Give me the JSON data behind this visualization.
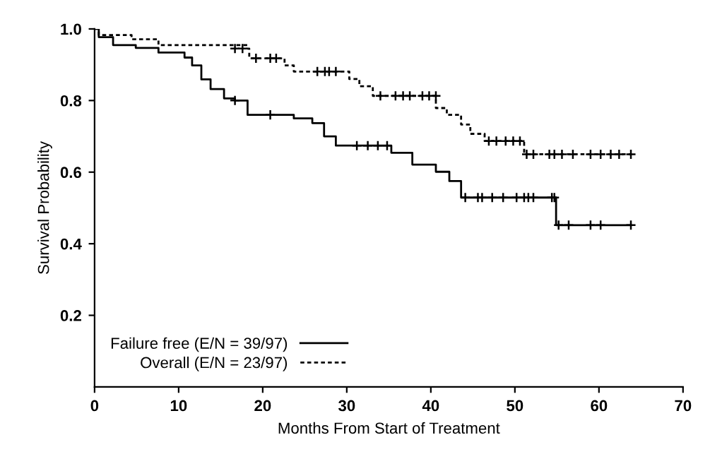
{
  "chart_data": {
    "type": "step",
    "xlabel": "Months From Start of Treatment",
    "ylabel": "Survival Probability",
    "xlim": [
      0,
      70
    ],
    "xticks": [
      0,
      10,
      20,
      30,
      40,
      50,
      60,
      70
    ],
    "ylim": [
      0,
      1.0
    ],
    "yticks": [
      0.2,
      0.4,
      0.6,
      0.8,
      {
        "value": 1,
        "label": "1.0"
      }
    ],
    "grid": false,
    "legend": "bottom left",
    "marker": "none",
    "series": [
      {
        "name": "Failure free (E/N = 39/97)",
        "color": "#000000",
        "line_style": "solid",
        "x": [
          0,
          0.5,
          2.2,
          4.9,
          7.6,
          10.7,
          11.6,
          12.7,
          13.8,
          15.4,
          16.7,
          18.2,
          23.7,
          25.9,
          27.3,
          28.7,
          35.3,
          37.8,
          40.6,
          42.2,
          43.6,
          54.9,
          63.8
        ],
        "values": [
          1.0,
          0.977,
          0.955,
          0.947,
          0.934,
          0.92,
          0.898,
          0.859,
          0.832,
          0.806,
          0.8,
          0.76,
          0.75,
          0.737,
          0.7,
          0.674,
          0.654,
          0.621,
          0.601,
          0.575,
          0.529,
          0.452,
          0.452
        ]
      },
      {
        "name": "Overall (E/N = 23/97)",
        "color": "#000000",
        "line_style": "dashed",
        "x": [
          0,
          0.5,
          4.4,
          7.6,
          18.2,
          18.4,
          22.6,
          23.7,
          30.3,
          31.5,
          33.1,
          40.6,
          41.9,
          43.6,
          44.7,
          46.4,
          51.1,
          63.8
        ],
        "values": [
          1.0,
          0.983,
          0.971,
          0.955,
          0.945,
          0.918,
          0.898,
          0.881,
          0.86,
          0.84,
          0.813,
          0.779,
          0.76,
          0.733,
          0.707,
          0.687,
          0.65,
          0.65
        ]
      },
      {
        "type": "scatter",
        "marker": "cross",
        "color": "#000000",
        "x": [
          16.7,
          20.9,
          31.2,
          32.5,
          33.7,
          34.8,
          44.1,
          45.6,
          46.1,
          47.3,
          48.6,
          50.2,
          51.1,
          51.6,
          52.2,
          54.4,
          54.7,
          55.2,
          56.4,
          59.0,
          60.2,
          63.8
        ],
        "values": [
          0.8,
          0.76,
          0.674,
          0.674,
          0.674,
          0.674,
          0.529,
          0.529,
          0.529,
          0.529,
          0.529,
          0.529,
          0.529,
          0.529,
          0.529,
          0.529,
          0.529,
          0.452,
          0.452,
          0.452,
          0.452,
          0.452
        ]
      },
      {
        "type": "scatter",
        "marker": "cross",
        "color": "#000000",
        "x": [
          16.7,
          17.6,
          19.2,
          20.9,
          21.6,
          26.5,
          27.4,
          27.9,
          28.7,
          34.0,
          35.8,
          36.7,
          37.5,
          39.0,
          39.8,
          40.6,
          46.9,
          47.8,
          48.9,
          49.8,
          50.6,
          51.4,
          52.2,
          54.1,
          54.7,
          55.6,
          56.9,
          59.0,
          60.2,
          61.4,
          62.4,
          63.8
        ],
        "values": [
          0.945,
          0.945,
          0.918,
          0.918,
          0.918,
          0.881,
          0.881,
          0.881,
          0.881,
          0.813,
          0.813,
          0.813,
          0.813,
          0.813,
          0.813,
          0.813,
          0.687,
          0.687,
          0.687,
          0.687,
          0.687,
          0.65,
          0.65,
          0.65,
          0.65,
          0.65,
          0.65,
          0.65,
          0.65,
          0.65,
          0.65,
          0.65
        ]
      }
    ]
  }
}
